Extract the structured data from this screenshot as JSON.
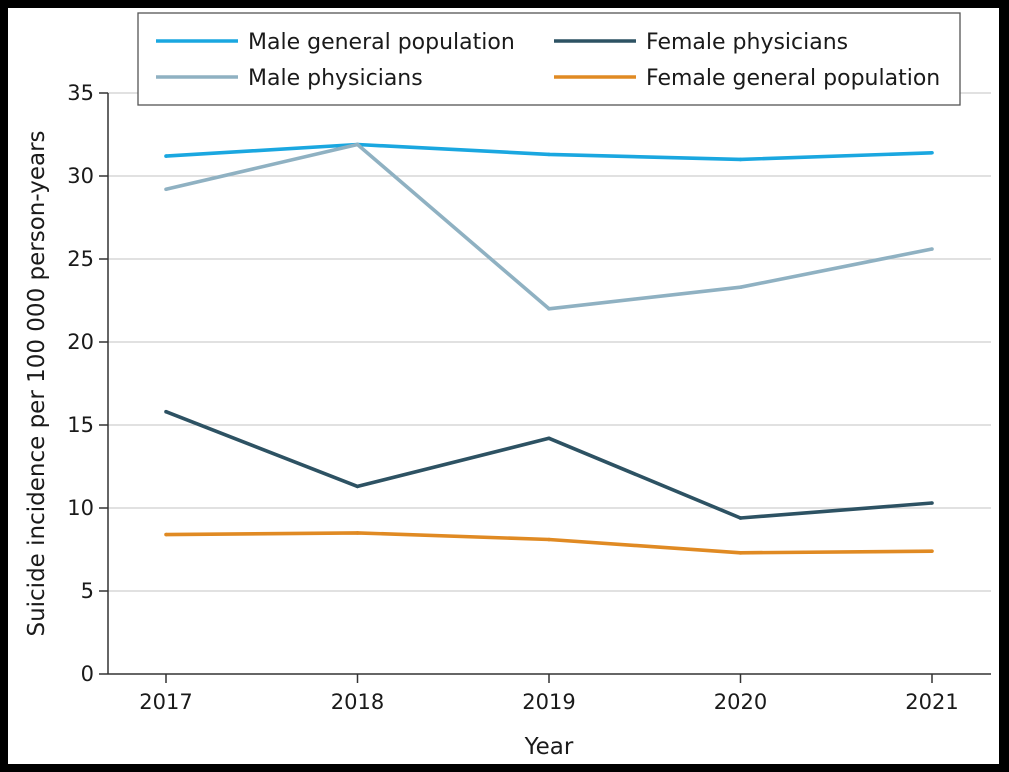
{
  "chart_data": {
    "type": "line",
    "xlabel": "Year",
    "ylabel": "Suicide incidence per 100 000 person-years",
    "categories": [
      "2017",
      "2018",
      "2019",
      "2020",
      "2021"
    ],
    "ylim": [
      0,
      35
    ],
    "yticks": [
      0,
      5,
      10,
      15,
      20,
      25,
      30,
      35
    ],
    "grid": "horizontal",
    "legend_position": "top",
    "series": [
      {
        "name": "Male general population",
        "color": "#1aa7e0",
        "values": [
          31.2,
          31.9,
          31.3,
          31.0,
          31.4
        ]
      },
      {
        "name": "Male physicians",
        "color": "#8fb1c2",
        "values": [
          29.2,
          31.9,
          22.0,
          23.3,
          25.6
        ]
      },
      {
        "name": "Female physicians",
        "color": "#2d5263",
        "values": [
          15.8,
          11.3,
          14.2,
          9.4,
          10.3
        ]
      },
      {
        "name": "Female general population",
        "color": "#e08a23",
        "values": [
          8.4,
          8.5,
          8.1,
          7.3,
          7.4
        ]
      }
    ]
  }
}
